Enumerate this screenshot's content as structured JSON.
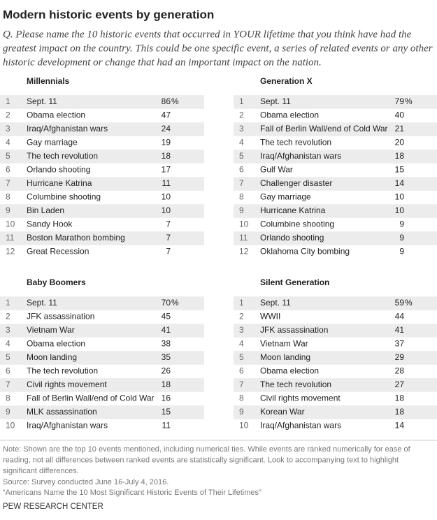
{
  "title": "Modern historic events by generation",
  "question": [
    "Q.  Please name the 10 historic events that occurred in YOUR lifetime that you think have had the",
    "greatest impact on the country. This could be one specific event, a series of related events or any other",
    "historic development or change that had an important impact on the nation."
  ],
  "percent_sign": "%",
  "tables": [
    {
      "heading": "Millennials",
      "rows": [
        [
          1,
          "Sept. 11",
          86
        ],
        [
          2,
          "Obama election",
          47
        ],
        [
          3,
          "Iraq/Afghanistan wars",
          24
        ],
        [
          4,
          "Gay marriage",
          19
        ],
        [
          5,
          "The tech revolution",
          18
        ],
        [
          6,
          "Orlando shooting",
          17
        ],
        [
          7,
          "Hurricane Katrina",
          11
        ],
        [
          8,
          "Columbine shooting",
          10
        ],
        [
          9,
          "Bin Laden",
          10
        ],
        [
          10,
          "Sandy Hook",
          7
        ],
        [
          11,
          "Boston Marathon bombing",
          7
        ],
        [
          12,
          "Great Recession",
          7
        ]
      ]
    },
    {
      "heading": "Generation X",
      "rows": [
        [
          1,
          "Sept. 11",
          79
        ],
        [
          2,
          "Obama election",
          40
        ],
        [
          3,
          "Fall of Berlin Wall/end of Cold War",
          21
        ],
        [
          4,
          "The tech revolution",
          20
        ],
        [
          5,
          "Iraq/Afghanistan wars",
          18
        ],
        [
          6,
          "Gulf War",
          15
        ],
        [
          7,
          "Challenger disaster",
          14
        ],
        [
          8,
          "Gay marriage",
          10
        ],
        [
          9,
          "Hurricane Katrina",
          10
        ],
        [
          10,
          "Columbine shooting",
          9
        ],
        [
          11,
          "Orlando shooting",
          9
        ],
        [
          12,
          "Oklahoma City bombing",
          9
        ]
      ]
    },
    {
      "heading": "Baby Boomers",
      "rows": [
        [
          1,
          "Sept. 11",
          70
        ],
        [
          2,
          "JFK assassination",
          45
        ],
        [
          3,
          "Vietnam War",
          41
        ],
        [
          4,
          "Obama election",
          38
        ],
        [
          5,
          "Moon landing",
          35
        ],
        [
          6,
          "The tech revolution",
          26
        ],
        [
          7,
          "Civil rights movement",
          18
        ],
        [
          8,
          "Fall of Berlin Wall/end of Cold War",
          16
        ],
        [
          9,
          "MLK assassination",
          15
        ],
        [
          10,
          "Iraq/Afghanistan wars",
          11
        ]
      ]
    },
    {
      "heading": "Silent Generation",
      "rows": [
        [
          1,
          "Sept. 11",
          59
        ],
        [
          2,
          "WWII",
          44
        ],
        [
          3,
          "JFK assassination",
          41
        ],
        [
          4,
          "Vietnam War",
          37
        ],
        [
          5,
          "Moon landing",
          29
        ],
        [
          6,
          "Obama election",
          28
        ],
        [
          7,
          "The tech revolution",
          27
        ],
        [
          8,
          "Civil rights movement",
          18
        ],
        [
          9,
          "Korean War",
          18
        ],
        [
          10,
          "Iraq/Afghanistan wars",
          14
        ]
      ]
    }
  ],
  "note": [
    "Note: Shown are the top 10 events mentioned, including numerical ties. While events are ranked numerically for ease of",
    "reading, not all differences between ranked events are statistically significant. Look to accompanying text to highlight",
    "significant differences."
  ],
  "source": "Source: Survey conducted June 16-July 4, 2016.",
  "report": "“Americans Name the 10 Most Significant Historic Events of Their Lifetimes”",
  "footer": "PEW RESEARCH CENTER"
}
